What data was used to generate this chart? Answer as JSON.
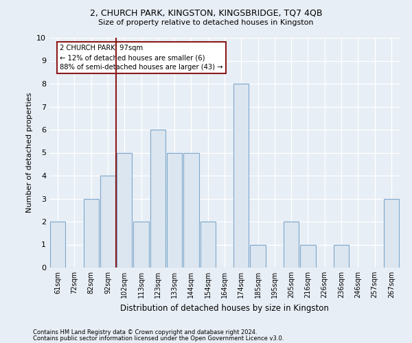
{
  "title1": "2, CHURCH PARK, KINGSTON, KINGSBRIDGE, TQ7 4QB",
  "title2": "Size of property relative to detached houses in Kingston",
  "xlabel": "Distribution of detached houses by size in Kingston",
  "ylabel": "Number of detached properties",
  "bar_labels": [
    "61sqm",
    "72sqm",
    "82sqm",
    "92sqm",
    "102sqm",
    "113sqm",
    "123sqm",
    "133sqm",
    "144sqm",
    "154sqm",
    "164sqm",
    "174sqm",
    "185sqm",
    "195sqm",
    "205sqm",
    "216sqm",
    "226sqm",
    "236sqm",
    "246sqm",
    "257sqm",
    "267sqm"
  ],
  "bar_values": [
    2,
    0,
    3,
    4,
    5,
    2,
    6,
    5,
    5,
    2,
    0,
    8,
    1,
    0,
    2,
    1,
    0,
    1,
    0,
    0,
    3
  ],
  "bar_color": "#dce6f0",
  "bar_edgecolor": "#7ca7cc",
  "vline_color": "#8b1a1a",
  "annotation_line1": "2 CHURCH PARK: 97sqm",
  "annotation_line2": "← 12% of detached houses are smaller (6)",
  "annotation_line3": "88% of semi-detached houses are larger (43) →",
  "annotation_box_color": "#8b1a1a",
  "ylim": [
    0,
    10
  ],
  "yticks": [
    0,
    1,
    2,
    3,
    4,
    5,
    6,
    7,
    8,
    9,
    10
  ],
  "footnote1": "Contains HM Land Registry data © Crown copyright and database right 2024.",
  "footnote2": "Contains public sector information licensed under the Open Government Licence v3.0.",
  "bg_color": "#e8eef5",
  "plot_bg_color": "#e8eef5"
}
